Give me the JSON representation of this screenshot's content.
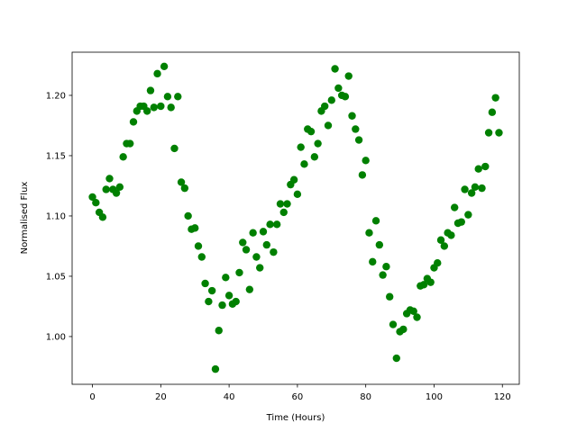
{
  "chart_data": {
    "type": "scatter",
    "xlabel": "Time (Hours)",
    "ylabel": "Normalised Flux",
    "color": "#008000",
    "x": [
      0,
      1,
      2,
      3,
      4,
      5,
      6,
      7,
      8,
      9,
      10,
      11,
      12,
      13,
      14,
      15,
      16,
      17,
      18,
      19,
      20,
      21,
      22,
      23,
      24,
      25,
      26,
      27,
      28,
      29,
      30,
      31,
      32,
      33,
      34,
      35,
      36,
      37,
      38,
      39,
      40,
      41,
      42,
      43,
      44,
      45,
      46,
      47,
      48,
      49,
      50,
      51,
      52,
      53,
      54,
      55,
      56,
      57,
      58,
      59,
      60,
      61,
      62,
      63,
      64,
      65,
      66,
      67,
      68,
      69,
      70,
      71,
      72,
      73,
      74,
      75,
      76,
      77,
      78,
      79,
      80,
      81,
      82,
      83,
      84,
      85,
      86,
      87,
      88,
      89,
      90,
      91,
      92,
      93,
      94,
      95,
      96,
      97,
      98,
      99,
      100,
      101,
      102,
      103,
      104,
      105,
      106,
      107,
      108,
      109,
      110,
      111,
      112,
      113,
      114,
      115,
      116,
      117,
      118,
      119
    ],
    "values": [
      1.1157,
      1.111,
      1.103,
      1.099,
      1.122,
      1.131,
      1.122,
      1.119,
      1.124,
      1.149,
      1.16,
      1.16,
      1.178,
      1.187,
      1.191,
      1.191,
      1.187,
      1.204,
      1.19,
      1.218,
      1.191,
      1.224,
      1.199,
      1.19,
      1.156,
      1.199,
      1.128,
      1.123,
      1.1,
      1.089,
      1.09,
      1.075,
      1.066,
      1.044,
      1.029,
      1.038,
      0.973,
      1.005,
      1.026,
      1.049,
      1.034,
      1.027,
      1.029,
      1.053,
      1.078,
      1.072,
      1.039,
      1.086,
      1.066,
      1.057,
      1.087,
      1.076,
      1.093,
      1.07,
      1.093,
      1.11,
      1.103,
      1.11,
      1.126,
      1.13,
      1.118,
      1.157,
      1.143,
      1.172,
      1.17,
      1.149,
      1.16,
      1.187,
      1.191,
      1.175,
      1.196,
      1.222,
      1.206,
      1.2,
      1.199,
      1.216,
      1.183,
      1.172,
      1.163,
      1.134,
      1.146,
      1.086,
      1.062,
      1.096,
      1.076,
      1.051,
      1.058,
      1.033,
      1.01,
      0.982,
      1.004,
      1.006,
      1.019,
      1.022,
      1.021,
      1.016,
      1.042,
      1.043,
      1.048,
      1.045,
      1.057,
      1.061,
      1.08,
      1.075,
      1.086,
      1.084,
      1.107,
      1.094,
      1.095,
      1.122,
      1.101,
      1.119,
      1.124,
      1.139,
      1.123,
      1.141,
      1.169,
      1.186,
      1.198,
      1.169
    ],
    "xlim": [
      -5.95,
      124.95
    ],
    "ylim": [
      0.9604,
      1.2358
    ],
    "xticks": [
      0,
      20,
      40,
      60,
      80,
      100,
      120
    ],
    "yticks": [
      {
        "value": 1,
        "label": "1.00"
      },
      1.05,
      {
        "value": 1.1,
        "label": "1.10"
      },
      1.15,
      {
        "value": 1.2,
        "label": "1.20"
      }
    ]
  }
}
